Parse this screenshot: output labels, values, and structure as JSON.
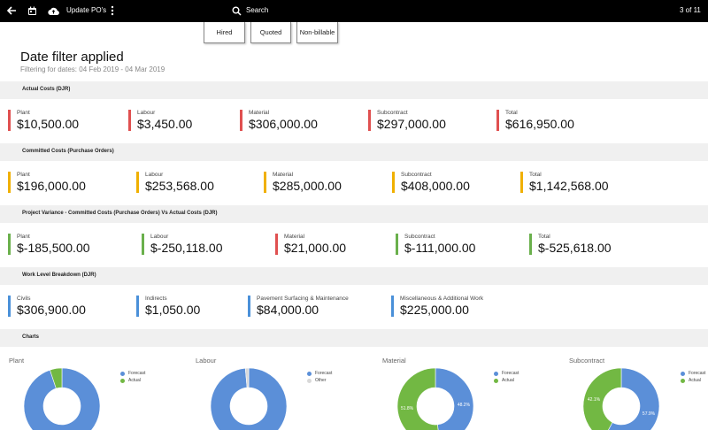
{
  "topbar": {
    "update_label": "Update PO's",
    "search_label": "Search",
    "pager": "3 of 11"
  },
  "chips": [
    "Hired",
    "Quoted",
    "Non-billable"
  ],
  "header": {
    "title": "Date filter applied",
    "subtitle": "Filtering for dates: 04 Feb 2019 - 04 Mar 2019"
  },
  "colors": {
    "actual": "#e05050",
    "committed": "#f0b000",
    "variance_pos": "#6ab04c",
    "work": "#4a90d9",
    "forecast": "#5b8fd8",
    "actual_green": "#72b843",
    "other": "#d8d8d8"
  },
  "sections": {
    "actual": {
      "title": "Actual Costs (DJR)",
      "items": [
        {
          "label": "Plant",
          "value": "$10,500.00"
        },
        {
          "label": "Labour",
          "value": "$3,450.00"
        },
        {
          "label": "Material",
          "value": "$306,000.00"
        },
        {
          "label": "Subcontract",
          "value": "$297,000.00"
        },
        {
          "label": "Total",
          "value": "$616,950.00"
        }
      ]
    },
    "committed": {
      "title": "Committed Costs (Purchase Orders)",
      "items": [
        {
          "label": "Plant",
          "value": "$196,000.00"
        },
        {
          "label": "Labour",
          "value": "$253,568.00"
        },
        {
          "label": "Material",
          "value": "$285,000.00"
        },
        {
          "label": "Subcontract",
          "value": "$408,000.00"
        },
        {
          "label": "Total",
          "value": "$1,142,568.00"
        }
      ]
    },
    "variance": {
      "title": "Project Variance - Committed Costs (Purchase Orders) Vs Actual Costs (DJR)",
      "items": [
        {
          "label": "Plant",
          "value": "$-185,500.00"
        },
        {
          "label": "Labour",
          "value": "$-250,118.00"
        },
        {
          "label": "Material",
          "value": "$21,000.00"
        },
        {
          "label": "Subcontract",
          "value": "$-111,000.00"
        },
        {
          "label": "Total",
          "value": "$-525,618.00"
        }
      ]
    },
    "work": {
      "title": "Work Level Breakdown (DJR)",
      "items": [
        {
          "label": "Civils",
          "value": "$306,900.00"
        },
        {
          "label": "Indirects",
          "value": "$1,050.00"
        },
        {
          "label": "Pavement Surfacing & Maintenance",
          "value": "$84,000.00"
        },
        {
          "label": "Miscellaneous & Additional Work",
          "value": "$225,000.00"
        }
      ]
    },
    "charts": {
      "title": "Charts"
    }
  },
  "chart_data": [
    {
      "type": "pie",
      "title": "Plant",
      "categories": [
        "Forecast",
        "Actual"
      ],
      "values": [
        94.9,
        5.1
      ],
      "labels": [
        "",
        ""
      ]
    },
    {
      "type": "pie",
      "title": "Labour",
      "categories": [
        "Forecast",
        "Other"
      ],
      "values": [
        98.6,
        1.4
      ],
      "labels": [
        "",
        ""
      ]
    },
    {
      "type": "pie",
      "title": "Material",
      "categories": [
        "Forecast",
        "Actual"
      ],
      "values": [
        48.2,
        51.8
      ],
      "labels": [
        "48.2%",
        "51.8%"
      ]
    },
    {
      "type": "pie",
      "title": "Subcontract",
      "categories": [
        "Forecast",
        "Actual"
      ],
      "values": [
        57.9,
        42.1
      ],
      "labels": [
        "57.9%",
        "42.1%"
      ]
    }
  ]
}
